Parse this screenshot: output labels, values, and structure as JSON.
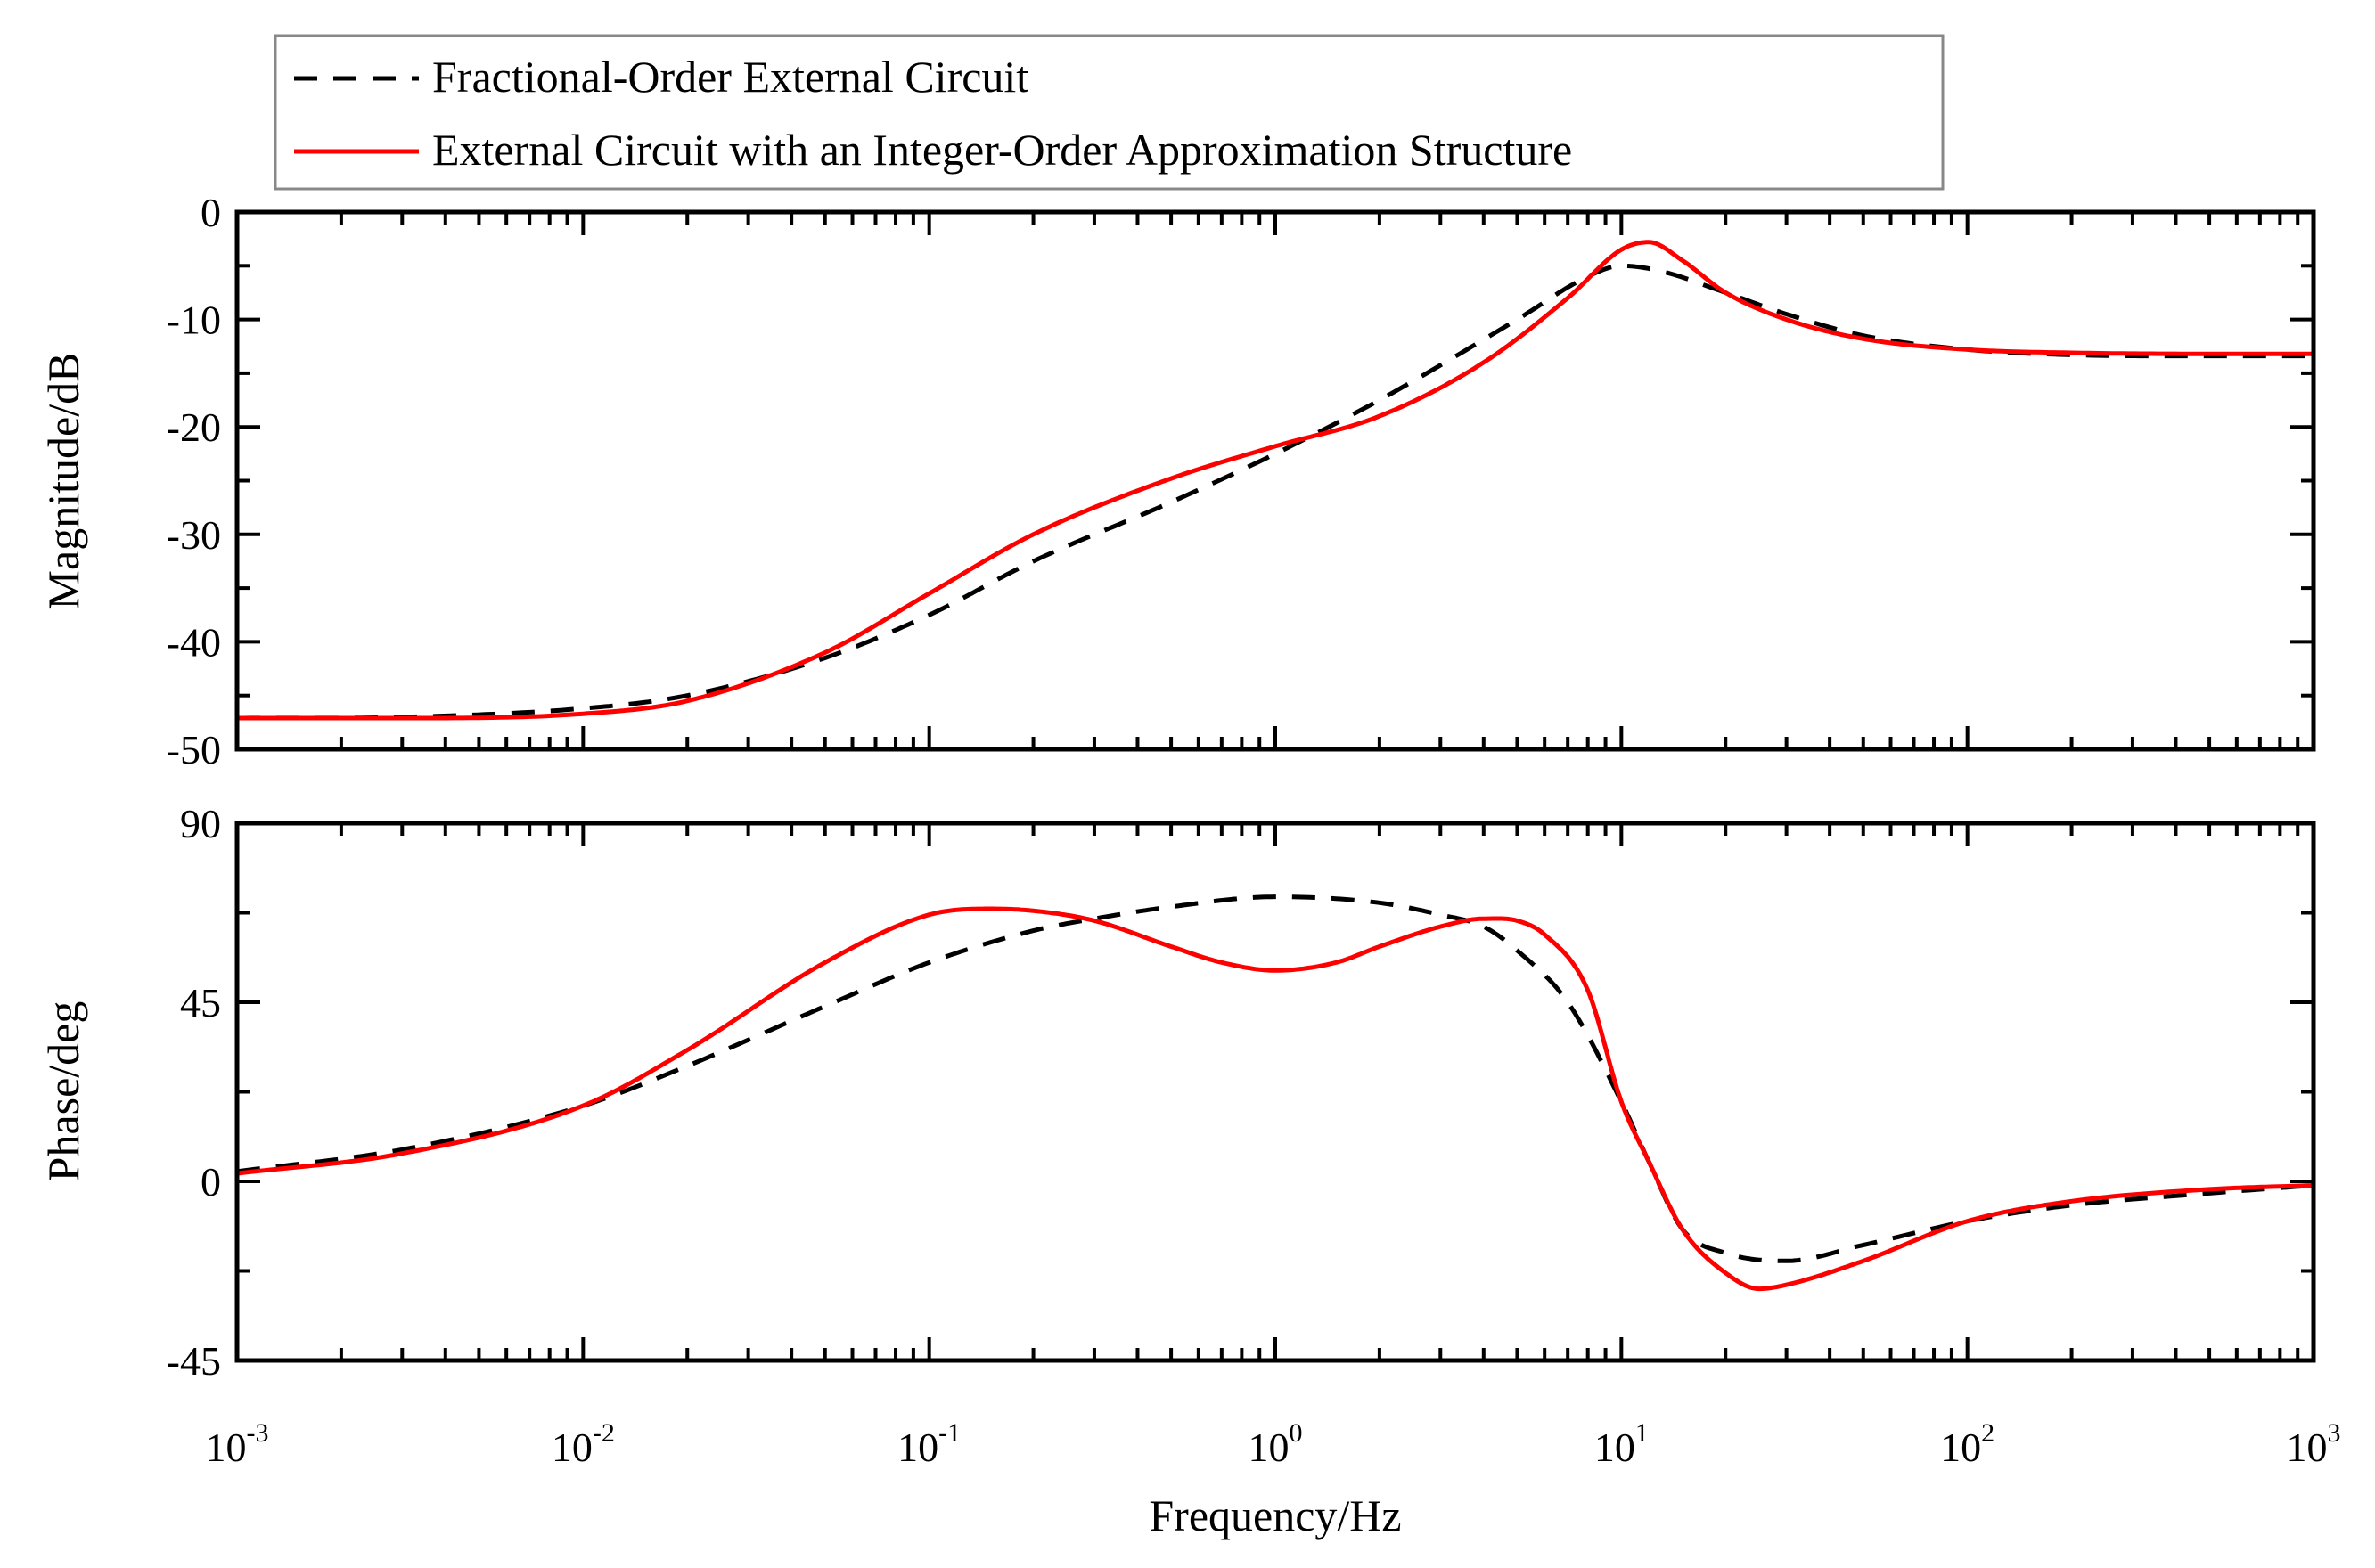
{
  "chart_data": [
    {
      "type": "line",
      "panel": "magnitude",
      "xscale": "log",
      "xlim": [
        0.001,
        1000
      ],
      "ylim": [
        -50,
        0
      ],
      "yticks": [
        0,
        -10,
        -20,
        -30,
        -40,
        -50
      ],
      "ytick_labels": [
        "0",
        "-10",
        "-20",
        "-30",
        "-40",
        "-50"
      ],
      "ylabel": "Magnitude/dB",
      "xlabel": "",
      "grid": false,
      "series": [
        {
          "name": "Fractional-Order External Circuit",
          "style": "dashed",
          "color": "#000000",
          "x": [
            0.001,
            0.003,
            0.01,
            0.02,
            0.05,
            0.1,
            0.2,
            0.5,
            1,
            2,
            5,
            8,
            10,
            13,
            20,
            30,
            50,
            100,
            200,
            500,
            1000
          ],
          "y": [
            -47.1,
            -47.0,
            -46.2,
            -45.0,
            -41.5,
            -37.5,
            -32.5,
            -27.0,
            -22.5,
            -17.5,
            -10.0,
            -6.0,
            -5.0,
            -5.5,
            -7.5,
            -9.5,
            -11.5,
            -12.8,
            -13.3,
            -13.4,
            -13.4
          ]
        },
        {
          "name": "External Circuit with an Integer-Order Approximation Structure",
          "style": "solid",
          "color": "#ff0000",
          "x": [
            0.001,
            0.003,
            0.01,
            0.02,
            0.05,
            0.1,
            0.2,
            0.5,
            1,
            2,
            4,
            7,
            10,
            12,
            15,
            20,
            30,
            50,
            100,
            200,
            500,
            1000
          ],
          "y": [
            -47.1,
            -47.1,
            -46.7,
            -45.5,
            -41.0,
            -35.5,
            -30.0,
            -24.8,
            -21.8,
            -19.0,
            -14.0,
            -8.0,
            -3.5,
            -2.8,
            -4.5,
            -7.5,
            -10.0,
            -11.8,
            -12.8,
            -13.1,
            -13.2,
            -13.2
          ]
        }
      ]
    },
    {
      "type": "line",
      "panel": "phase",
      "xscale": "log",
      "xlim": [
        0.001,
        1000
      ],
      "ylim": [
        -45,
        90
      ],
      "yticks": [
        90,
        45,
        0,
        -45
      ],
      "ytick_labels": [
        "90",
        "45",
        "0",
        "-45"
      ],
      "xtick_bases": [
        "10",
        "10",
        "10",
        "10",
        "10",
        "10",
        "10"
      ],
      "xtick_exponents": [
        "-3",
        "-2",
        "-1",
        "0",
        "1",
        "2",
        "3"
      ],
      "ylabel": "Phase/deg",
      "xlabel": "Frequency/Hz",
      "grid": false,
      "series": [
        {
          "name": "Fractional-Order External Circuit",
          "style": "dashed",
          "color": "#000000",
          "x": [
            0.001,
            0.003,
            0.01,
            0.02,
            0.05,
            0.1,
            0.2,
            0.3,
            0.5,
            1,
            2,
            3,
            4,
            5,
            7,
            10,
            12,
            15,
            20,
            30,
            50,
            100,
            200,
            500,
            1000
          ],
          "y": [
            2.5,
            8,
            19,
            29,
            44,
            55,
            63,
            66,
            69,
            71.5,
            70,
            67,
            64,
            58,
            45,
            20,
            5,
            -12,
            -18,
            -20,
            -16,
            -10,
            -6,
            -3,
            -1
          ]
        },
        {
          "name": "External Circuit with an Integer-Order Approximation Structure",
          "style": "solid",
          "color": "#ff0000",
          "x": [
            0.001,
            0.003,
            0.01,
            0.02,
            0.05,
            0.1,
            0.15,
            0.2,
            0.3,
            0.5,
            0.7,
            1,
            1.5,
            2,
            3,
            4,
            5,
            6,
            8,
            10,
            12,
            15,
            20,
            25,
            30,
            50,
            100,
            200,
            500,
            1000
          ],
          "y": [
            2,
            7,
            19,
            33,
            55,
            67,
            68.5,
            68,
            65.5,
            59,
            55,
            53,
            55,
            59,
            64,
            66,
            65.5,
            62,
            48,
            20,
            5,
            -12,
            -23,
            -27,
            -26,
            -20,
            -10,
            -5,
            -2,
            -1
          ]
        }
      ]
    }
  ],
  "legend": {
    "placement": "top",
    "entries": [
      "Fractional-Order External Circuit",
      "External Circuit with an Integer-Order Approximation Structure"
    ]
  }
}
